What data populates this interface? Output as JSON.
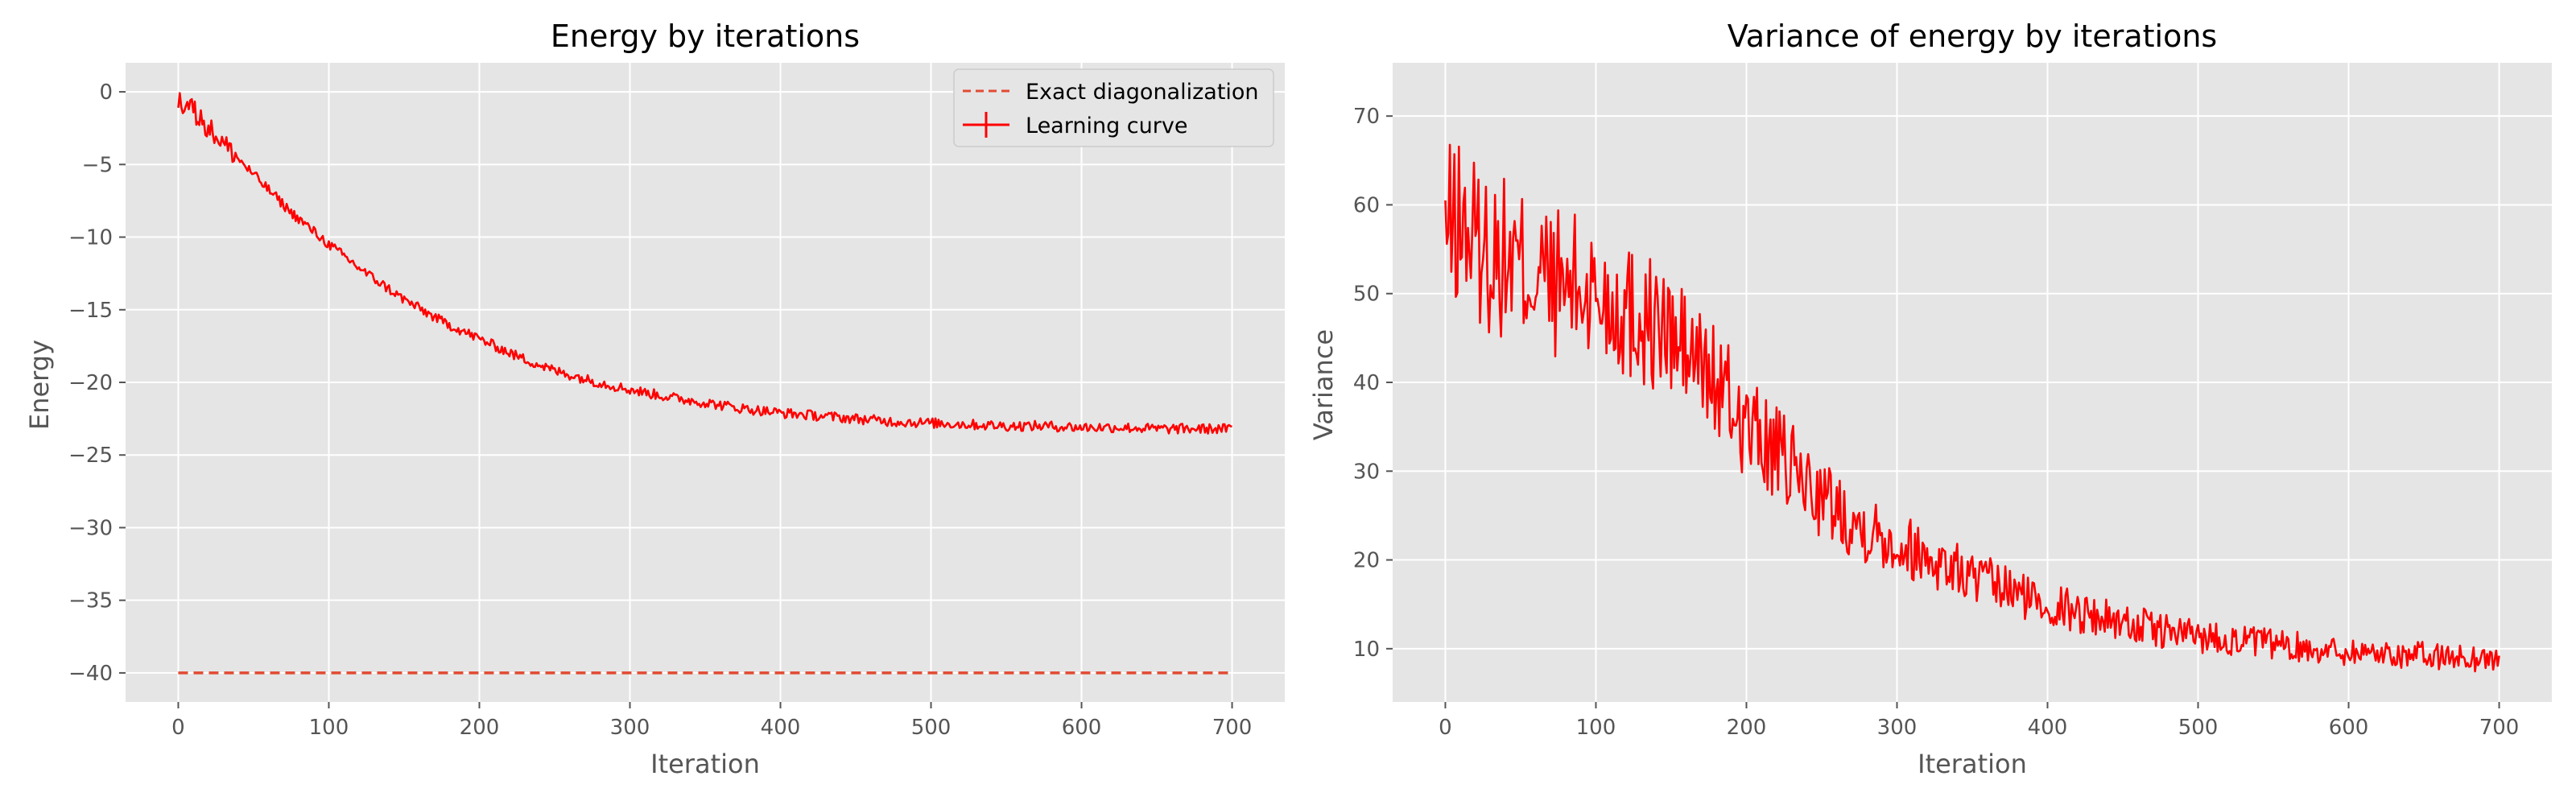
{
  "colors": {
    "plot_bg": "#E5E5E5",
    "grid": "#FFFFFF",
    "line": "#FF0000",
    "exact": "#E24A33",
    "tick_text": "#555555"
  },
  "chart_data": [
    {
      "type": "line",
      "title": "Energy by iterations",
      "xlabel": "Iteration",
      "ylabel": "Energy",
      "xlim": [
        -35,
        735
      ],
      "ylim": [
        -42,
        2
      ],
      "xticks": [
        0,
        100,
        200,
        300,
        400,
        500,
        600,
        700
      ],
      "yticks": [
        0,
        -5,
        -10,
        -15,
        -20,
        -25,
        -30,
        -35,
        -40
      ],
      "grid": true,
      "legend": "top-right",
      "series": [
        {
          "name": "Exact diagonalization",
          "style": "dashed",
          "x": [
            0,
            700
          ],
          "y": [
            -40,
            -40
          ]
        },
        {
          "name": "Learning curve",
          "style": "solid-errorbar",
          "x": [
            0,
            10,
            25,
            50,
            75,
            100,
            125,
            150,
            175,
            200,
            225,
            250,
            275,
            300,
            325,
            350,
            375,
            400,
            425,
            450,
            475,
            500,
            525,
            550,
            575,
            600,
            625,
            650,
            675,
            700
          ],
          "y": [
            -0.5,
            -1.3,
            -3.0,
            -5.7,
            -8.3,
            -10.5,
            -12.5,
            -14.3,
            -15.8,
            -17.0,
            -18.2,
            -19.2,
            -19.9,
            -20.5,
            -21.0,
            -21.4,
            -21.8,
            -22.1,
            -22.3,
            -22.5,
            -22.7,
            -22.8,
            -22.9,
            -23.0,
            -23.0,
            -23.1,
            -23.1,
            -23.2,
            -23.2,
            -23.2
          ]
        }
      ]
    },
    {
      "type": "line",
      "title": "Variance of energy by iterations",
      "xlabel": "Iteration",
      "ylabel": "Variance",
      "xlim": [
        -35,
        735
      ],
      "ylim": [
        4,
        76
      ],
      "xticks": [
        0,
        100,
        200,
        300,
        400,
        500,
        600,
        700
      ],
      "yticks": [
        10,
        20,
        30,
        40,
        50,
        60,
        70
      ],
      "grid": true,
      "series": [
        {
          "style": "solid",
          "x": [
            0,
            10,
            25,
            50,
            75,
            100,
            125,
            150,
            175,
            200,
            225,
            250,
            275,
            300,
            325,
            350,
            375,
            400,
            425,
            450,
            475,
            500,
            525,
            550,
            575,
            600,
            625,
            650,
            675,
            700
          ],
          "y": [
            57,
            58,
            55,
            53,
            51,
            50,
            48,
            45,
            41,
            35,
            31,
            27,
            24,
            22,
            20,
            18,
            16.5,
            15,
            14,
            13,
            12,
            11.5,
            11,
            10.5,
            10,
            9.7,
            9.5,
            9.2,
            9,
            8.8
          ]
        }
      ]
    }
  ]
}
